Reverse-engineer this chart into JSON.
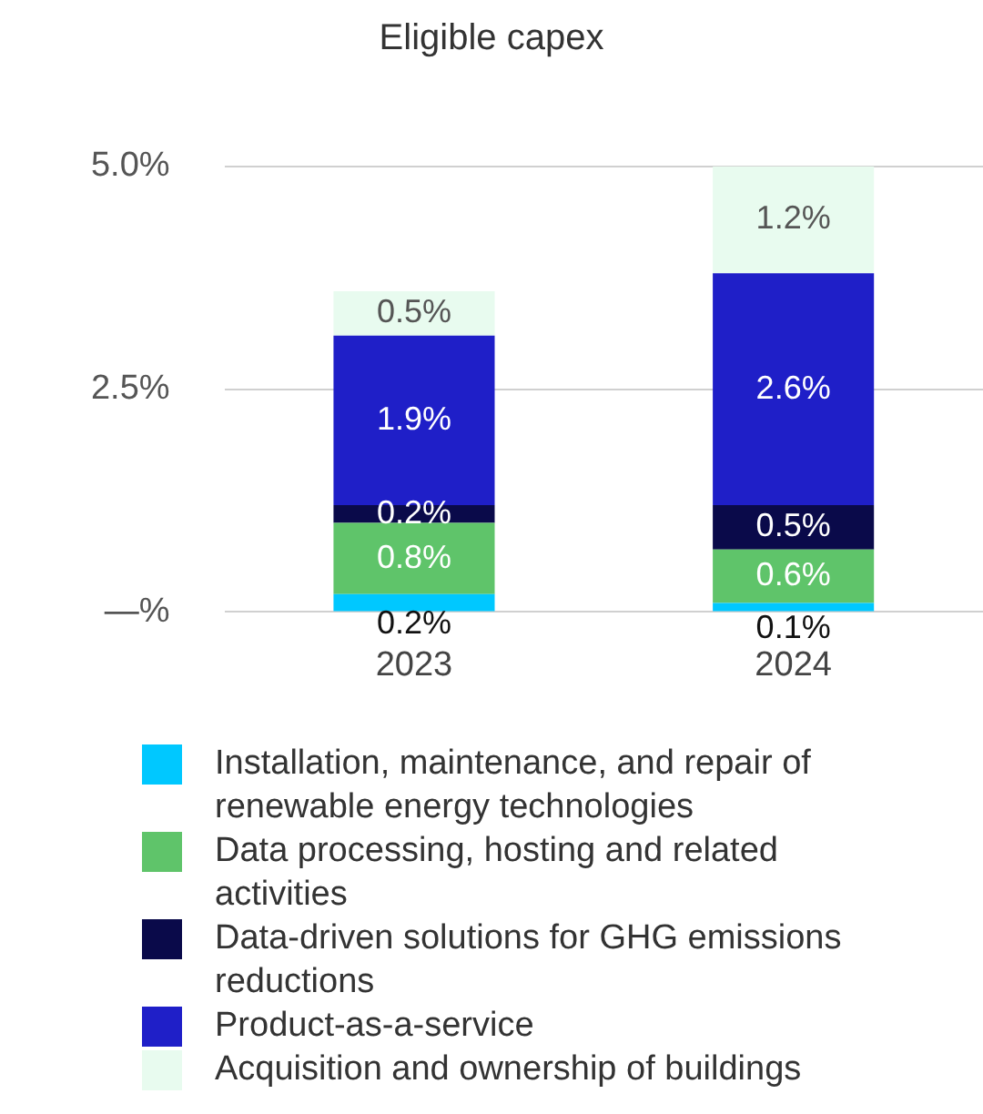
{
  "chart_data": {
    "type": "bar",
    "title": "Eligible capex",
    "stacked": true,
    "grid": "y",
    "legend": "bottom",
    "categories": [
      "2023",
      "2024"
    ],
    "ylim": [
      0,
      5
    ],
    "yticks": [
      {
        "value": 0,
        "label": "—%"
      },
      {
        "value": 2.5,
        "label": "2.5%"
      },
      {
        "value": 5,
        "label": "5.0%"
      }
    ],
    "series": [
      {
        "name": "Installation, maintenance, and repair of renewable energy technologies",
        "color": "#00c8ff",
        "values": [
          0.2,
          0.1
        ],
        "value_labels": [
          "0.2%",
          "0.1%"
        ]
      },
      {
        "name": "Data processing, hosting and related activities",
        "color": "#5fc46a",
        "values": [
          0.8,
          0.6
        ],
        "value_labels": [
          "0.8%",
          "0.6%"
        ]
      },
      {
        "name": "Data-driven solutions for GHG emissions reductions",
        "color": "#0a0a4a",
        "values": [
          0.2,
          0.5
        ],
        "value_labels": [
          "0.2%",
          "0.5%"
        ]
      },
      {
        "name": "Product-as-a-service",
        "color": "#1f1fc8",
        "values": [
          1.9,
          2.6
        ],
        "value_labels": [
          "1.9%",
          "2.6%"
        ]
      },
      {
        "name": "Acquisition and ownership of buildings",
        "color": "#e8fbef",
        "values": [
          0.5,
          1.2
        ],
        "value_labels": [
          "0.5%",
          "1.2%"
        ]
      }
    ]
  }
}
